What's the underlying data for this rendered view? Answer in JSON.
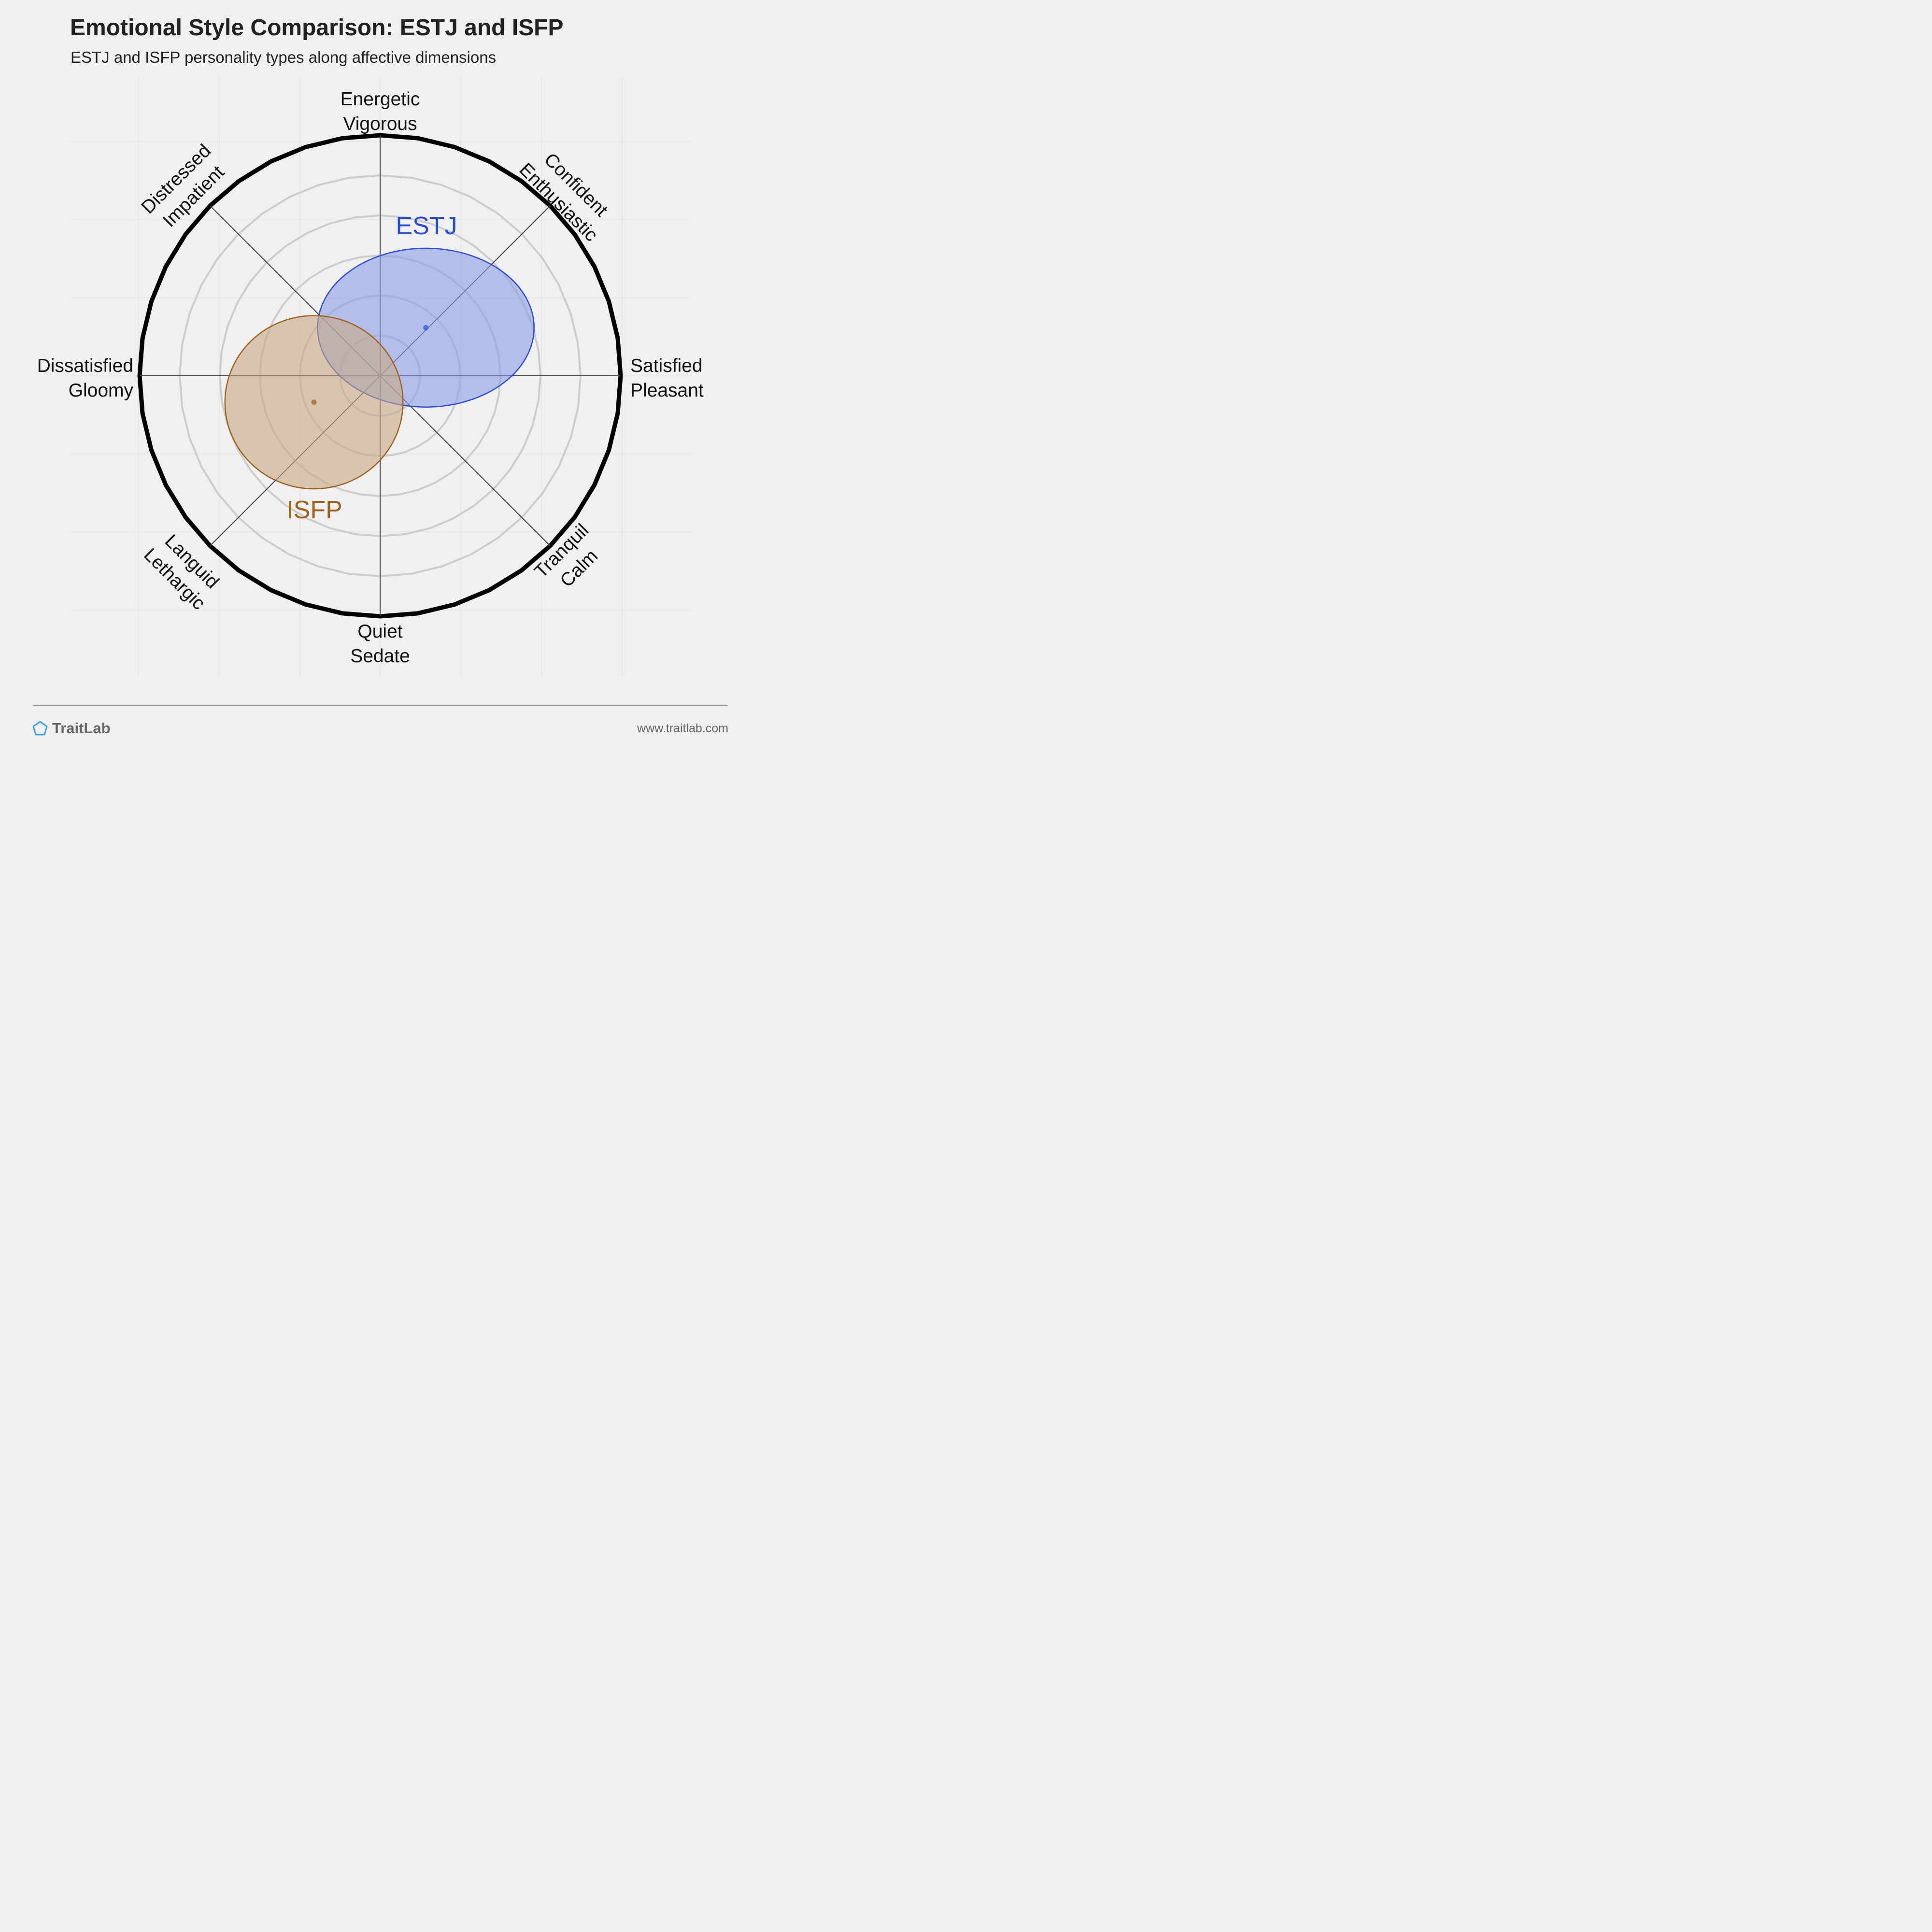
{
  "header": {
    "title": "Emotional Style Comparison: ESTJ and ISFP",
    "subtitle": "ESTJ and ISFP personality types along affective dimensions"
  },
  "footer": {
    "brand": "TraitLab",
    "website": "www.traitlab.com"
  },
  "chart_data": {
    "type": "radar-scatter",
    "axes": [
      {
        "angle_deg": 90,
        "lines": [
          "Energetic",
          "Vigorous"
        ]
      },
      {
        "angle_deg": 45,
        "lines": [
          "Confident",
          "Enthusiastic"
        ]
      },
      {
        "angle_deg": 0,
        "lines": [
          "Satisfied",
          "Pleasant"
        ]
      },
      {
        "angle_deg": -45,
        "lines": [
          "Tranquil",
          "Calm"
        ]
      },
      {
        "angle_deg": -90,
        "lines": [
          "Quiet",
          "Sedate"
        ]
      },
      {
        "angle_deg": -135,
        "lines": [
          "Languid",
          "Lethargic"
        ]
      },
      {
        "angle_deg": 180,
        "lines": [
          "Dissatisfied",
          "Gloomy"
        ]
      },
      {
        "angle_deg": 135,
        "lines": [
          "Distressed",
          "Impatient"
        ]
      }
    ],
    "range": [
      -1,
      1
    ],
    "rings": 6,
    "series": [
      {
        "name": "ESTJ",
        "color": "#2a4bd7",
        "fill": "#8c9de6",
        "center": [
          0.19,
          0.2
        ],
        "spread": [
          0.45,
          0.33
        ]
      },
      {
        "name": "ISFP",
        "color": "#a0601e",
        "fill": "#c8a882",
        "center": [
          -0.275,
          -0.11
        ],
        "spread": [
          0.37,
          0.36
        ]
      }
    ]
  },
  "colors": {
    "background": "#f0f0f0",
    "outer_ring": "#000000",
    "inner_rings": "#cccccc",
    "axis_lines": "#444444"
  }
}
